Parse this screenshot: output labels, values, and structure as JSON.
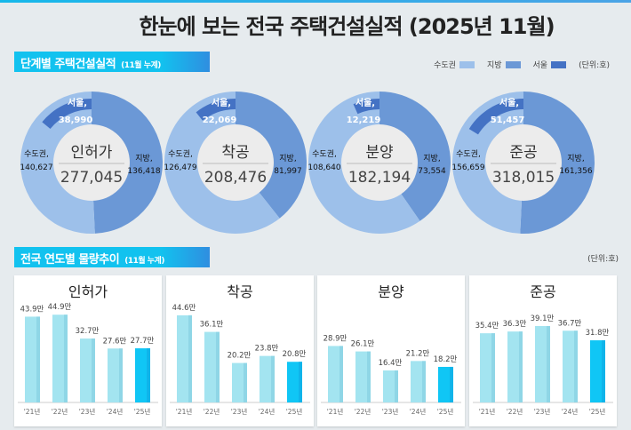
{
  "title": "한눈에 보는 전국 주택건설실적 (2025년 11월)",
  "section1": {
    "label": "단계별 주택건설실적",
    "sub": "(11월 누계)"
  },
  "section2": {
    "label": "전국 연도별 물량추이",
    "sub": "(11월 누계)"
  },
  "legend": {
    "items": [
      {
        "label": "수도권",
        "color": "#9dc0ea"
      },
      {
        "label": "지방",
        "color": "#6b98d6"
      },
      {
        "label": "서울",
        "color": "#4472c4"
      }
    ],
    "unit": "(단위:호)"
  },
  "unit2": "(단위:호)",
  "chart_data": [
    {
      "type": "pie",
      "title": "인허가",
      "total": "277,045",
      "slices": [
        {
          "name": "지방",
          "value": 136418,
          "label": "136,418"
        },
        {
          "name": "수도권",
          "value": 140627,
          "label": "140,627"
        },
        {
          "name": "서울",
          "value": 38990,
          "label": "38,990"
        }
      ]
    },
    {
      "type": "pie",
      "title": "착공",
      "total": "208,476",
      "slices": [
        {
          "name": "지방",
          "value": 81997,
          "label": "81,997"
        },
        {
          "name": "수도권",
          "value": 126479,
          "label": "126,479"
        },
        {
          "name": "서울",
          "value": 22069,
          "label": "22,069"
        }
      ]
    },
    {
      "type": "pie",
      "title": "분양",
      "total": "182,194",
      "slices": [
        {
          "name": "지방",
          "value": 73554,
          "label": "73,554"
        },
        {
          "name": "수도권",
          "value": 108640,
          "label": "108,640"
        },
        {
          "name": "서울",
          "value": 12219,
          "label": "12,219"
        }
      ]
    },
    {
      "type": "pie",
      "title": "준공",
      "total": "318,015",
      "slices": [
        {
          "name": "지방",
          "value": 161356,
          "label": "161,356"
        },
        {
          "name": "수도권",
          "value": 156659,
          "label": "156,659"
        },
        {
          "name": "서울",
          "value": 51457,
          "label": "51,457"
        }
      ]
    },
    {
      "type": "bar",
      "title": "인허가",
      "categories": [
        "'21년",
        "'22년",
        "'23년",
        "'24년",
        "'25년"
      ],
      "values": [
        43.9,
        44.9,
        32.7,
        27.6,
        27.7
      ],
      "labels": [
        "43.9만",
        "44.9만",
        "32.7만",
        "27.6만",
        "27.7만"
      ]
    },
    {
      "type": "bar",
      "title": "착공",
      "categories": [
        "'21년",
        "'22년",
        "'23년",
        "'24년",
        "'25년"
      ],
      "values": [
        44.6,
        36.1,
        20.2,
        23.8,
        20.8
      ],
      "labels": [
        "44.6만",
        "36.1만",
        "20.2만",
        "23.8만",
        "20.8만"
      ]
    },
    {
      "type": "bar",
      "title": "분양",
      "categories": [
        "'21년",
        "'22년",
        "'23년",
        "'24년",
        "'25년"
      ],
      "values": [
        28.9,
        26.1,
        16.4,
        21.2,
        18.2
      ],
      "labels": [
        "28.9만",
        "26.1만",
        "16.4만",
        "21.2만",
        "18.2만"
      ]
    },
    {
      "type": "bar",
      "title": "준공",
      "categories": [
        "'21년",
        "'22년",
        "'23년",
        "'24년",
        "'25년"
      ],
      "values": [
        35.4,
        36.3,
        39.1,
        36.7,
        31.8
      ],
      "labels": [
        "35.4만",
        "36.3만",
        "39.1만",
        "36.7만",
        "31.8만"
      ]
    }
  ],
  "colors": {
    "bar": "#a3e4f0",
    "bar_current": "#10c6f5"
  }
}
